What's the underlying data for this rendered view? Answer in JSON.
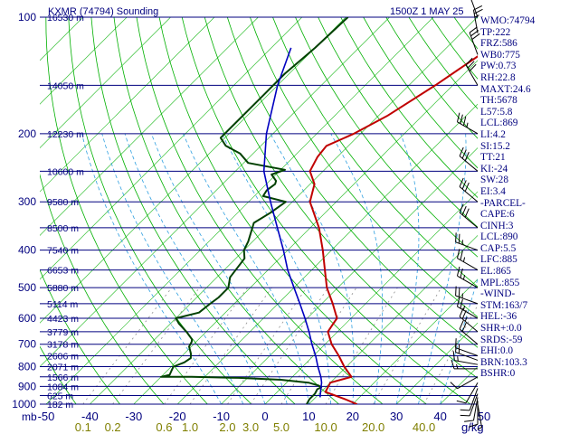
{
  "header": {
    "station": "KXMR (74794) Sounding",
    "valid_time": "1500Z  1 MAY 25"
  },
  "axis_units": {
    "pressure": "mb",
    "mixing_ratio": "g/kg"
  },
  "colors": {
    "background": "#ffffff",
    "isobar": "#00007f",
    "temperature_profile": "#c00000",
    "dewpoint_profile": "#004000",
    "parcel_path": "#0000c0",
    "dry_adiabat": "#00b000",
    "moist_adiabat": "#30a0e0",
    "mixing_ratio": "#909090",
    "label_text": "#00007f",
    "mixing_ratio_label": "#7f7f00"
  },
  "stats": [
    "WMO:74794",
    "TP:222",
    "FRZ:586",
    "WB0:775",
    "PW:0.73",
    "RH:22.8",
    "MAXT:24.6",
    "TH:5678",
    "L57:5.8",
    "LCL:869",
    "LI:4.2",
    "SI:15.2",
    "TT:21",
    "KI:-24",
    "SW:28",
    "EI:3.4",
    "-PARCEL-",
    "CAPE:6",
    "CINH:3",
    "LCL:890",
    "CAP:5.5",
    "LFC:885",
    "EL:865",
    "MPL:855",
    "-WIND-",
    "STM:163/7",
    "HEL:-36",
    "SHR+:0.0",
    "SRDS:-59",
    "EHI:0.0",
    "BRN:103.3",
    "BSHR:0"
  ],
  "chart_data": {
    "type": "line",
    "title": "KXMR (74794) Sounding",
    "subtitle": "1500Z  1 MAY 25",
    "xlabel": "",
    "ylabel": "mb",
    "y_scale": "log",
    "x_skewed": true,
    "xlim": [
      -50,
      50
    ],
    "ylim": [
      1000,
      100
    ],
    "grid": true,
    "pressure_ticks": [
      100,
      200,
      300,
      400,
      500,
      600,
      700,
      800,
      900,
      1000
    ],
    "temperature_ticks": [
      -50,
      -40,
      -30,
      -20,
      -10,
      0,
      10,
      20,
      30,
      40,
      50
    ],
    "height_labels": [
      {
        "p": 100,
        "label": "16530 m"
      },
      {
        "p": 150,
        "label": "14050 m"
      },
      {
        "p": 200,
        "label": "12230 m"
      },
      {
        "p": 250,
        "label": "10600 m"
      },
      {
        "p": 300,
        "label": "9580 m"
      },
      {
        "p": 350,
        "label": "8500 m"
      },
      {
        "p": 400,
        "label": "7540 m"
      },
      {
        "p": 450,
        "label": "6653 m"
      },
      {
        "p": 500,
        "label": "5880 m"
      },
      {
        "p": 550,
        "label": "5114 m"
      },
      {
        "p": 600,
        "label": "4423 m"
      },
      {
        "p": 650,
        "label": "3779 m"
      },
      {
        "p": 700,
        "label": "3178 m"
      },
      {
        "p": 750,
        "label": "2606 m"
      },
      {
        "p": 800,
        "label": "2071 m"
      },
      {
        "p": 850,
        "label": "1566 m"
      },
      {
        "p": 900,
        "label": "1084 m"
      },
      {
        "p": 950,
        "label": "625 m"
      },
      {
        "p": 1000,
        "label": "182 m"
      }
    ],
    "mixing_ratio_labels": [
      "0.1",
      "0.2",
      "0.6",
      "1.0",
      "2.0",
      "3.0",
      "5.0",
      "10.0",
      "20.0",
      "40.0"
    ],
    "mixing_ratio_values": [
      0.1,
      0.2,
      0.6,
      1.0,
      2.0,
      3.0,
      5.0,
      10.0,
      20.0,
      40.0
    ],
    "series": [
      {
        "id": "temperature",
        "points": [
          [
            1000,
            21
          ],
          [
            970,
            17
          ],
          [
            930,
            11
          ],
          [
            880,
            10
          ],
          [
            850,
            13.5
          ],
          [
            800,
            9.5
          ],
          [
            750,
            5.8
          ],
          [
            700,
            1.5
          ],
          [
            650,
            -2.2
          ],
          [
            620,
            -2.8
          ],
          [
            600,
            -3.2
          ],
          [
            550,
            -7.5
          ],
          [
            500,
            -12.5
          ],
          [
            450,
            -17
          ],
          [
            400,
            -22
          ],
          [
            350,
            -28
          ],
          [
            300,
            -36
          ],
          [
            270,
            -39
          ],
          [
            250,
            -43
          ],
          [
            230,
            -44.5
          ],
          [
            215,
            -45
          ],
          [
            200,
            -41.5
          ],
          [
            180,
            -38
          ],
          [
            150,
            -34
          ],
          [
            120,
            -30
          ],
          [
            100,
            -27
          ]
        ]
      },
      {
        "id": "dewpoint",
        "points": [
          [
            1000,
            9.5
          ],
          [
            970,
            9
          ],
          [
            940,
            9
          ],
          [
            915,
            8.5
          ],
          [
            905,
            9
          ],
          [
            895,
            8
          ],
          [
            880,
            5
          ],
          [
            865,
            -2
          ],
          [
            855,
            -12
          ],
          [
            850,
            -23
          ],
          [
            850,
            -30
          ],
          [
            840,
            -28.5
          ],
          [
            820,
            -29
          ],
          [
            800,
            -29.5
          ],
          [
            780,
            -28
          ],
          [
            760,
            -27.5
          ],
          [
            740,
            -28.5
          ],
          [
            710,
            -30.5
          ],
          [
            690,
            -31
          ],
          [
            680,
            -31.5
          ],
          [
            650,
            -34.5
          ],
          [
            620,
            -38
          ],
          [
            600,
            -40
          ],
          [
            580,
            -36
          ],
          [
            550,
            -35.5
          ],
          [
            530,
            -35
          ],
          [
            500,
            -35
          ],
          [
            470,
            -37
          ],
          [
            420,
            -38
          ],
          [
            400,
            -40
          ],
          [
            380,
            -41
          ],
          [
            340,
            -44
          ],
          [
            320,
            -42.5
          ],
          [
            300,
            -41.5
          ],
          [
            290,
            -48
          ],
          [
            280,
            -48.5
          ],
          [
            270,
            -48
          ],
          [
            265,
            -48.5
          ],
          [
            255,
            -51
          ],
          [
            248,
            -49
          ],
          [
            238,
            -59
          ],
          [
            225,
            -63
          ],
          [
            215,
            -68
          ],
          [
            205,
            -71
          ],
          [
            200,
            -71
          ],
          [
            160,
            -71
          ],
          [
            140,
            -71
          ],
          [
            120,
            -70
          ],
          [
            100,
            -69.5
          ]
        ]
      },
      {
        "id": "parcel",
        "points": [
          [
            960,
            11
          ],
          [
            920,
            9.5
          ],
          [
            880,
            8
          ],
          [
            850,
            6.5
          ],
          [
            800,
            3.5
          ],
          [
            750,
            0.5
          ],
          [
            700,
            -3
          ],
          [
            650,
            -6.5
          ],
          [
            600,
            -10.5
          ],
          [
            550,
            -15
          ],
          [
            500,
            -20
          ],
          [
            450,
            -25.5
          ],
          [
            400,
            -31
          ],
          [
            350,
            -37.5
          ],
          [
            300,
            -45
          ],
          [
            250,
            -53.5
          ],
          [
            200,
            -61.5
          ],
          [
            150,
            -70
          ],
          [
            120,
            -75.5
          ]
        ]
      }
    ],
    "wind_barbs": [
      {
        "p": 1000,
        "dir": 170,
        "kt": 5
      },
      {
        "p": 980,
        "dir": 180,
        "kt": 10
      },
      {
        "p": 960,
        "dir": 190,
        "kt": 10
      },
      {
        "p": 940,
        "dir": 200,
        "kt": 10
      },
      {
        "p": 910,
        "dir": 200,
        "kt": 10
      },
      {
        "p": 880,
        "dir": 210,
        "kt": 10
      },
      {
        "p": 850,
        "dir": 240,
        "kt": 10
      },
      {
        "p": 810,
        "dir": 270,
        "kt": 15
      },
      {
        "p": 790,
        "dir": 280,
        "kt": 15
      },
      {
        "p": 770,
        "dir": 290,
        "kt": 15
      },
      {
        "p": 750,
        "dir": 290,
        "kt": 15
      },
      {
        "p": 700,
        "dir": 310,
        "kt": 20
      },
      {
        "p": 650,
        "dir": 310,
        "kt": 25
      },
      {
        "p": 600,
        "dir": 300,
        "kt": 25
      },
      {
        "p": 550,
        "dir": 290,
        "kt": 25
      },
      {
        "p": 500,
        "dir": 300,
        "kt": 25
      },
      {
        "p": 450,
        "dir": 300,
        "kt": 25
      },
      {
        "p": 400,
        "dir": 290,
        "kt": 25
      },
      {
        "p": 350,
        "dir": 310,
        "kt": 30
      },
      {
        "p": 300,
        "dir": 310,
        "kt": 30
      },
      {
        "p": 250,
        "dir": 310,
        "kt": 30
      },
      {
        "p": 200,
        "dir": 300,
        "kt": 35
      },
      {
        "p": 150,
        "dir": 330,
        "kt": 30
      },
      {
        "p": 125,
        "dir": 340,
        "kt": 30
      },
      {
        "p": 110,
        "dir": 350,
        "kt": 25
      },
      {
        "p": 100,
        "dir": 340,
        "kt": 20
      }
    ]
  }
}
